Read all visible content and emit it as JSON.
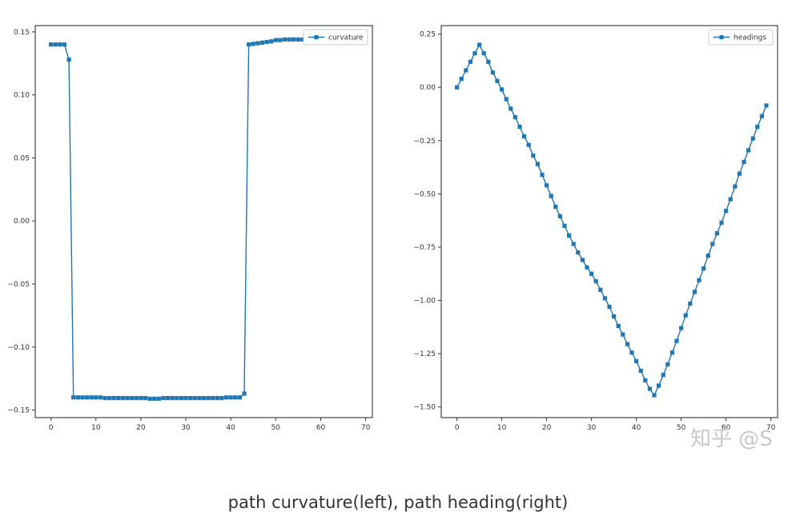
{
  "caption": "path curvature(left), path heading(right)",
  "watermark": "知乎 @S",
  "colors": {
    "series": "#1f77b4",
    "axis": "#333333",
    "frame": "#222222",
    "legend_border": "#cccccc"
  },
  "chart_data": [
    {
      "type": "line",
      "marker": "square",
      "xlim": [
        -3.5,
        71.5
      ],
      "ylim": [
        -0.156,
        0.155
      ],
      "xticks": [
        0,
        10,
        20,
        30,
        40,
        50,
        60,
        70
      ],
      "yticks": [
        0.15,
        0.1,
        0.05,
        0.0,
        -0.05,
        -0.1,
        -0.15
      ],
      "ytick_labels": [
        "0.15",
        "0.10",
        "0.05",
        "0.00",
        "−0.05",
        "−0.10",
        "−0.15"
      ],
      "legend_position": "top-right",
      "grid": false,
      "series": [
        {
          "name": "curvature",
          "x": [
            0,
            1,
            2,
            3,
            4,
            5,
            6,
            7,
            8,
            9,
            10,
            11,
            12,
            13,
            14,
            15,
            16,
            17,
            18,
            19,
            20,
            21,
            22,
            23,
            24,
            25,
            26,
            27,
            28,
            29,
            30,
            31,
            32,
            33,
            34,
            35,
            36,
            37,
            38,
            39,
            40,
            41,
            42,
            43,
            44,
            45,
            46,
            47,
            48,
            49,
            50,
            51,
            52,
            53,
            54,
            55,
            56,
            57,
            58,
            59,
            60,
            61,
            62,
            63,
            64,
            65,
            66,
            67,
            68
          ],
          "y": [
            0.14,
            0.14,
            0.14,
            0.14,
            0.128,
            -0.14,
            -0.14,
            -0.14,
            -0.14,
            -0.14,
            -0.14,
            -0.14,
            -0.1405,
            -0.1405,
            -0.1405,
            -0.1405,
            -0.1405,
            -0.1405,
            -0.1405,
            -0.1405,
            -0.1405,
            -0.1405,
            -0.141,
            -0.141,
            -0.141,
            -0.1405,
            -0.1405,
            -0.1405,
            -0.1405,
            -0.1405,
            -0.1405,
            -0.1405,
            -0.1405,
            -0.1405,
            -0.1405,
            -0.1405,
            -0.1405,
            -0.1405,
            -0.1405,
            -0.14,
            -0.14,
            -0.14,
            -0.14,
            -0.137,
            0.14,
            0.1405,
            0.141,
            0.1415,
            0.142,
            0.1425,
            0.1435,
            0.1435,
            0.144,
            0.144,
            0.144,
            0.144,
            0.144,
            0.1435,
            0.1435,
            0.1435,
            0.1435,
            0.144,
            0.144,
            0.1445,
            0.1445,
            0.1435,
            0.1435,
            0.1435,
            0.1435
          ]
        }
      ]
    },
    {
      "type": "line",
      "marker": "square",
      "xlim": [
        -3.5,
        71.5
      ],
      "ylim": [
        -1.55,
        0.29
      ],
      "xticks": [
        0,
        10,
        20,
        30,
        40,
        50,
        60,
        70
      ],
      "yticks": [
        0.25,
        0.0,
        -0.25,
        -0.5,
        -0.75,
        -1.0,
        -1.25,
        -1.5
      ],
      "ytick_labels": [
        "0.25",
        "0.00",
        "−0.25",
        "−0.50",
        "−0.75",
        "−1.00",
        "−1.25",
        "−1.50"
      ],
      "legend_position": "top-right",
      "grid": false,
      "series": [
        {
          "name": "headings",
          "x": [
            0,
            1,
            2,
            3,
            4,
            5,
            6,
            7,
            8,
            9,
            10,
            11,
            12,
            13,
            14,
            15,
            16,
            17,
            18,
            19,
            20,
            21,
            22,
            23,
            24,
            25,
            26,
            27,
            28,
            29,
            30,
            31,
            32,
            33,
            34,
            35,
            36,
            37,
            38,
            39,
            40,
            41,
            42,
            43,
            44,
            45,
            46,
            47,
            48,
            49,
            50,
            51,
            52,
            53,
            54,
            55,
            56,
            57,
            58,
            59,
            60,
            61,
            62,
            63,
            64,
            65,
            66,
            67,
            68,
            69
          ],
          "y": [
            0.0,
            0.04,
            0.08,
            0.12,
            0.16,
            0.2,
            0.16,
            0.12,
            0.07,
            0.03,
            -0.01,
            -0.055,
            -0.1,
            -0.14,
            -0.185,
            -0.23,
            -0.27,
            -0.32,
            -0.36,
            -0.41,
            -0.46,
            -0.51,
            -0.56,
            -0.605,
            -0.65,
            -0.695,
            -0.735,
            -0.775,
            -0.81,
            -0.845,
            -0.875,
            -0.91,
            -0.95,
            -0.99,
            -1.03,
            -1.075,
            -1.12,
            -1.16,
            -1.205,
            -1.245,
            -1.285,
            -1.33,
            -1.375,
            -1.415,
            -1.445,
            -1.4,
            -1.35,
            -1.3,
            -1.245,
            -1.19,
            -1.13,
            -1.07,
            -1.015,
            -0.96,
            -0.905,
            -0.85,
            -0.79,
            -0.735,
            -0.685,
            -0.635,
            -0.58,
            -0.525,
            -0.465,
            -0.405,
            -0.35,
            -0.295,
            -0.24,
            -0.185,
            -0.135,
            -0.085
          ]
        }
      ]
    }
  ]
}
